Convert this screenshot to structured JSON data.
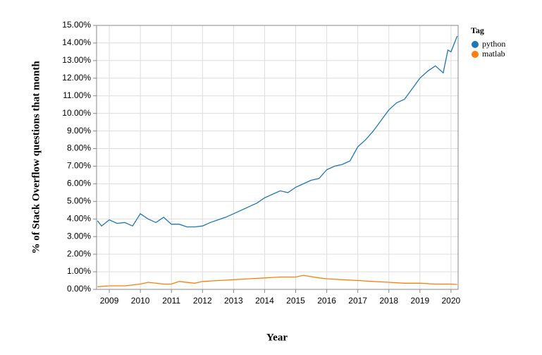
{
  "chart_data": {
    "type": "line",
    "y_title": "% of Stack Overflow questions that month",
    "x_title": "Year",
    "legend_title": "Tag",
    "legend_position": "right",
    "grid": true,
    "xlim": [
      2008.59,
      2020.23
    ],
    "xticks": [
      2009,
      2010,
      2011,
      2012,
      2013,
      2014,
      2015,
      2016,
      2017,
      2018,
      2019,
      2020
    ],
    "ylim": [
      0,
      15
    ],
    "yticks": [
      {
        "value": 0,
        "label": "0.00%"
      },
      {
        "value": 1,
        "label": "1.00%"
      },
      {
        "value": 2,
        "label": "2.00%"
      },
      {
        "value": 3,
        "label": "3.00%"
      },
      {
        "value": 4,
        "label": "4.00%"
      },
      {
        "value": 5,
        "label": "5.00%"
      },
      {
        "value": 6,
        "label": "6.00%"
      },
      {
        "value": 7,
        "label": "7.00%"
      },
      {
        "value": 8,
        "label": "8.00%"
      },
      {
        "value": 9,
        "label": "9.00%"
      },
      {
        "value": 10,
        "label": "10.00%"
      },
      {
        "value": 11,
        "label": "11.00%"
      },
      {
        "value": 12,
        "label": "12.00%"
      },
      {
        "value": 13,
        "label": "13.00%"
      },
      {
        "value": 14,
        "label": "14.00%"
      },
      {
        "value": 15,
        "label": "15.00%"
      }
    ],
    "series": [
      {
        "name": "python",
        "color": "#1f77b4",
        "x": [
          2008.62,
          2008.75,
          2009.0,
          2009.25,
          2009.5,
          2009.75,
          2010.0,
          2010.25,
          2010.5,
          2010.75,
          2011.0,
          2011.25,
          2011.5,
          2011.75,
          2012.0,
          2012.25,
          2012.5,
          2012.75,
          2013.0,
          2013.25,
          2013.5,
          2013.75,
          2014.0,
          2014.25,
          2014.5,
          2014.75,
          2015.0,
          2015.25,
          2015.5,
          2015.75,
          2016.0,
          2016.25,
          2016.5,
          2016.75,
          2017.0,
          2017.25,
          2017.5,
          2017.75,
          2018.0,
          2018.25,
          2018.5,
          2018.75,
          2019.0,
          2019.25,
          2019.5,
          2019.75,
          2019.9,
          2020.0,
          2020.2
        ],
        "values": [
          3.9,
          3.6,
          3.95,
          3.75,
          3.8,
          3.6,
          4.3,
          4.0,
          3.8,
          4.1,
          3.7,
          3.7,
          3.55,
          3.55,
          3.6,
          3.8,
          3.95,
          4.1,
          4.3,
          4.5,
          4.7,
          4.9,
          5.2,
          5.4,
          5.6,
          5.5,
          5.8,
          6.0,
          6.2,
          6.3,
          6.8,
          7.0,
          7.1,
          7.3,
          8.1,
          8.5,
          9.0,
          9.6,
          10.2,
          10.6,
          10.8,
          11.4,
          12.0,
          12.4,
          12.7,
          12.3,
          13.6,
          13.5,
          14.4
        ]
      },
      {
        "name": "matlab",
        "color": "#ff7f0e",
        "x": [
          2008.62,
          2009.0,
          2009.5,
          2010.0,
          2010.25,
          2010.75,
          2011.0,
          2011.25,
          2011.75,
          2012.0,
          2012.5,
          2013.0,
          2013.5,
          2014.0,
          2014.5,
          2015.0,
          2015.25,
          2015.75,
          2016.0,
          2016.5,
          2017.0,
          2017.5,
          2018.0,
          2018.5,
          2019.0,
          2019.5,
          2020.0,
          2020.2
        ],
        "values": [
          0.15,
          0.2,
          0.2,
          0.3,
          0.4,
          0.3,
          0.3,
          0.45,
          0.35,
          0.45,
          0.5,
          0.55,
          0.6,
          0.65,
          0.7,
          0.7,
          0.8,
          0.65,
          0.6,
          0.55,
          0.5,
          0.45,
          0.4,
          0.35,
          0.35,
          0.3,
          0.3,
          0.28
        ]
      }
    ]
  }
}
